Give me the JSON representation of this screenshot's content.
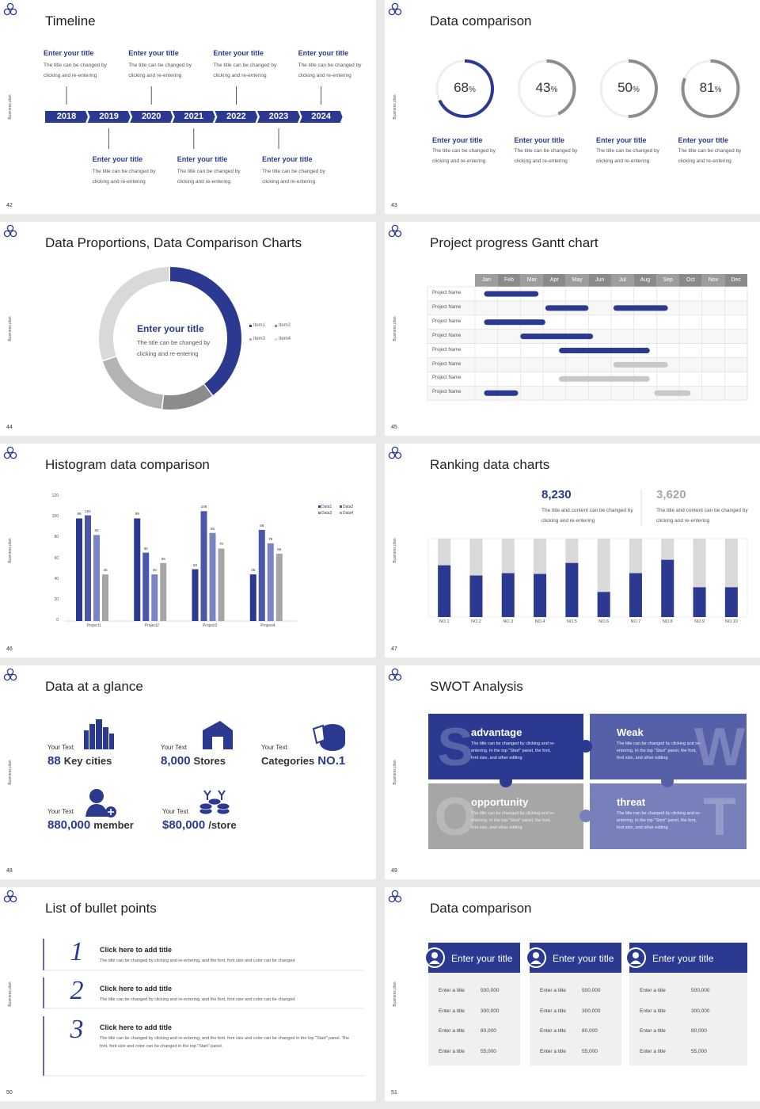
{
  "slides": [
    {
      "number": "42",
      "side": "Business plan",
      "title": "Timeline",
      "kind": "timeline",
      "years": [
        "2018",
        "2019",
        "2020",
        "2021",
        "2022",
        "2023",
        "2024"
      ],
      "items": [
        {
          "title": "Enter your title",
          "text": "The title can be changed by clicking and re-entering"
        },
        {
          "title": "Enter your title",
          "text": "The title can be changed by clicking and re-entering"
        },
        {
          "title": "Enter your title",
          "text": "The title can be changed by clicking and re-entering"
        },
        {
          "title": "Enter your title",
          "text": "The title can be changed by clicking and re-entering"
        },
        {
          "title": "Enter your title",
          "text": "The title can be changed by clicking and re-entering"
        },
        {
          "title": "Enter your title",
          "text": "The title can be changed by clicking and re-entering"
        },
        {
          "title": "Enter your title",
          "text": "The title can be changed by clicking and re-entering"
        }
      ]
    },
    {
      "number": "43",
      "side": "Business plan",
      "title": "Data comparison",
      "kind": "rings",
      "chart_data": {
        "type": "ring",
        "values": [
          68,
          43,
          50,
          81
        ],
        "unit": "%",
        "ylim": [
          0,
          100
        ],
        "colors": [
          "#2b3990",
          "#8c8c8c",
          "#8c8c8c",
          "#8c8c8c"
        ]
      },
      "items": [
        {
          "title": "Enter your title",
          "text": "The title can be changed by clicking and re-entering"
        },
        {
          "title": "Enter your title",
          "text": "The title can be changed by clicking and re-entering"
        },
        {
          "title": "Enter your title",
          "text": "The title can be changed by clicking and re-entering"
        },
        {
          "title": "Enter your title",
          "text": "The title can be changed by clicking and re-entering"
        }
      ]
    },
    {
      "number": "44",
      "side": "Business plan",
      "title": "Data Proportions, Data Comparison Charts",
      "kind": "donut",
      "chart_data": {
        "type": "donut",
        "categories": [
          "Item1",
          "Item2",
          "Item3",
          "Item4"
        ],
        "values": [
          40,
          12,
          18,
          30
        ],
        "colors": [
          "#2b3990",
          "#8c8c8c",
          "#b3b3b3",
          "#d9d9d9"
        ]
      },
      "center": {
        "title": "Enter your title",
        "text": "The title can be changed by clicking and re-entering"
      }
    },
    {
      "number": "45",
      "side": "Business plan",
      "title": "Project progress Gantt chart",
      "kind": "gantt",
      "chart_data": {
        "type": "gantt",
        "categories": [
          "Jan",
          "Feb",
          "Mar",
          "Apr",
          "May",
          "Jun",
          "Jul",
          "Aug",
          "Sep",
          "Oct",
          "Nov",
          "Dec"
        ],
        "rows": [
          "Project Name",
          "Project Name",
          "Project Name",
          "Project Name",
          "Project Name",
          "Project Name",
          "Project Name",
          "Project Name"
        ],
        "bars": [
          {
            "row": 0,
            "start": 0.4,
            "end": 2.8,
            "color": "#2b3990"
          },
          {
            "row": 1,
            "start": 3.1,
            "end": 5.0,
            "color": "#2b3990"
          },
          {
            "row": 1,
            "start": 6.1,
            "end": 8.5,
            "color": "#2b3990"
          },
          {
            "row": 2,
            "start": 0.4,
            "end": 3.1,
            "color": "#2b3990"
          },
          {
            "row": 3,
            "start": 2.0,
            "end": 5.2,
            "color": "#2b3990"
          },
          {
            "row": 4,
            "start": 3.7,
            "end": 7.7,
            "color": "#2b3990"
          },
          {
            "row": 5,
            "start": 6.1,
            "end": 8.5,
            "color": "#c8c8c8"
          },
          {
            "row": 6,
            "start": 3.7,
            "end": 7.7,
            "color": "#c8c8c8"
          },
          {
            "row": 7,
            "start": 0.4,
            "end": 1.9,
            "color": "#2b3990"
          },
          {
            "row": 7,
            "start": 7.9,
            "end": 9.5,
            "color": "#c8c8c8"
          }
        ]
      }
    },
    {
      "number": "46",
      "side": "Business plan",
      "title": "Histogram data comparison",
      "kind": "grouped",
      "chart_data": {
        "type": "bar",
        "categories": [
          "Project1",
          "Project2",
          "Project3",
          "Project4"
        ],
        "series": [
          {
            "name": "Data1",
            "color": "#2b3990",
            "values": [
              99,
              99,
              50,
              45
            ]
          },
          {
            "name": "Data2",
            "color": "#4b57a8",
            "values": [
              102,
              66,
              106,
              88
            ]
          },
          {
            "name": "Data3",
            "color": "#7b84c2",
            "values": [
              83,
              45,
              85,
              75
            ]
          },
          {
            "name": "Data4",
            "color": "#a6a6a6",
            "values": [
              45,
              56,
              70,
              65
            ]
          }
        ],
        "ylim": [
          0,
          120
        ],
        "yticks": [
          0,
          20,
          40,
          60,
          80,
          100,
          120
        ]
      }
    },
    {
      "number": "47",
      "side": "Business plan",
      "title": "Ranking data charts",
      "kind": "ranking",
      "stats": [
        {
          "value": "8,230",
          "text": "The title and content can be changed by clicking and re-entering",
          "color": "#2b3990"
        },
        {
          "value": "3,620",
          "text": "The title and content can be changed by clicking and re-entering",
          "color": "#a6a6a6"
        }
      ],
      "chart_data": {
        "type": "bar",
        "categories": [
          "NO.1",
          "NO.2",
          "NO.3",
          "NO.4",
          "NO.5",
          "NO.6",
          "NO.7",
          "NO.8",
          "NO.9",
          "NO.10"
        ],
        "values": [
          66,
          53,
          56,
          55,
          69,
          32,
          56,
          73,
          38,
          38
        ],
        "ylim": [
          0,
          100
        ],
        "color": "#2b3990",
        "track": "#d9d9d9"
      }
    },
    {
      "number": "48",
      "side": "Business plan",
      "title": "Data at a glance",
      "kind": "glance",
      "items": [
        {
          "label": "Your Text",
          "parts": [
            {
              "text": "88",
              "strong": true
            },
            {
              "text": "Key cities"
            }
          ]
        },
        {
          "label": "Your Text",
          "parts": [
            {
              "text": "8,000",
              "strong": true
            },
            {
              "text": "Stores"
            }
          ]
        },
        {
          "label": "Your Text",
          "parts": [
            {
              "text": "Categories"
            },
            {
              "text": "NO.1",
              "strong": true
            }
          ]
        },
        {
          "label": "Your Text",
          "parts": [
            {
              "text": "880,000",
              "strong": true
            },
            {
              "text": "member"
            }
          ]
        },
        {
          "label": "Your Text",
          "parts": [
            {
              "text": "$80,000",
              "strong": true
            },
            {
              "text": "/store"
            }
          ]
        }
      ]
    },
    {
      "number": "49",
      "side": "Business plan",
      "title": "SWOT Analysis",
      "kind": "swot",
      "quads": [
        {
          "letter": "S",
          "title": "advantage",
          "text": "The title can be changed by clicking and re-entering. In the top \"Start\" panel, the font, font size, and other editing",
          "color": "#2b3990"
        },
        {
          "letter": "W",
          "title": "Weak",
          "text": "The title can be changed by clicking and re-entering. In the top \"Start\" panel, the font, font size, and other editing",
          "color": "#5560a8"
        },
        {
          "letter": "O",
          "title": "opportunity",
          "text": "The title can be changed by clicking and re-entering. In the top \"Start\" panel, the font, font size, and other editing",
          "color": "#a6a6a6"
        },
        {
          "letter": "T",
          "title": "threat",
          "text": "The title can be changed by clicking and re-entering. In the top \"Start\" panel, the font, font size, and other editing",
          "color": "#7880bb"
        }
      ]
    },
    {
      "number": "50",
      "side": "Business plan",
      "title": "List of bullet points",
      "kind": "bullets",
      "items": [
        {
          "num": "1",
          "title": "Click here to add title",
          "text": "The title can be changed by clicking and re-entering, and the font, font size and color can be changed"
        },
        {
          "num": "2",
          "title": "Click here to add title",
          "text": "The title can be changed by clicking and re-entering, and the font, font size and color can be changed"
        },
        {
          "num": "3",
          "title": "Click here to add title",
          "text": "The title can be changed by clicking and re-entering, and the font, font size and color can be changed in the top \"Start\" panel. The font, font size and color can be changed in the top \"Start\" panel."
        }
      ]
    },
    {
      "number": "51",
      "side": "Business plan",
      "title": "Data comparison",
      "kind": "cards",
      "cards": [
        {
          "title": "Enter your title",
          "rows": [
            {
              "label": "Enter a title",
              "value": "500,000"
            },
            {
              "label": "Enter a title",
              "value": "300,000"
            },
            {
              "label": "Enter a title",
              "value": "80,000"
            },
            {
              "label": "Enter a title",
              "value": "55,000"
            }
          ]
        },
        {
          "title": "Enter your title",
          "rows": [
            {
              "label": "Enter a title",
              "value": "500,000"
            },
            {
              "label": "Enter a title",
              "value": "300,000"
            },
            {
              "label": "Enter a title",
              "value": "80,000"
            },
            {
              "label": "Enter a title",
              "value": "55,000"
            }
          ]
        },
        {
          "title": "Enter your title",
          "rows": [
            {
              "label": "Enter a title",
              "value": "500,000"
            },
            {
              "label": "Enter a title",
              "value": "300,000"
            },
            {
              "label": "Enter a title",
              "value": "80,000"
            },
            {
              "label": "Enter a title",
              "value": "55,000"
            }
          ]
        }
      ]
    }
  ]
}
